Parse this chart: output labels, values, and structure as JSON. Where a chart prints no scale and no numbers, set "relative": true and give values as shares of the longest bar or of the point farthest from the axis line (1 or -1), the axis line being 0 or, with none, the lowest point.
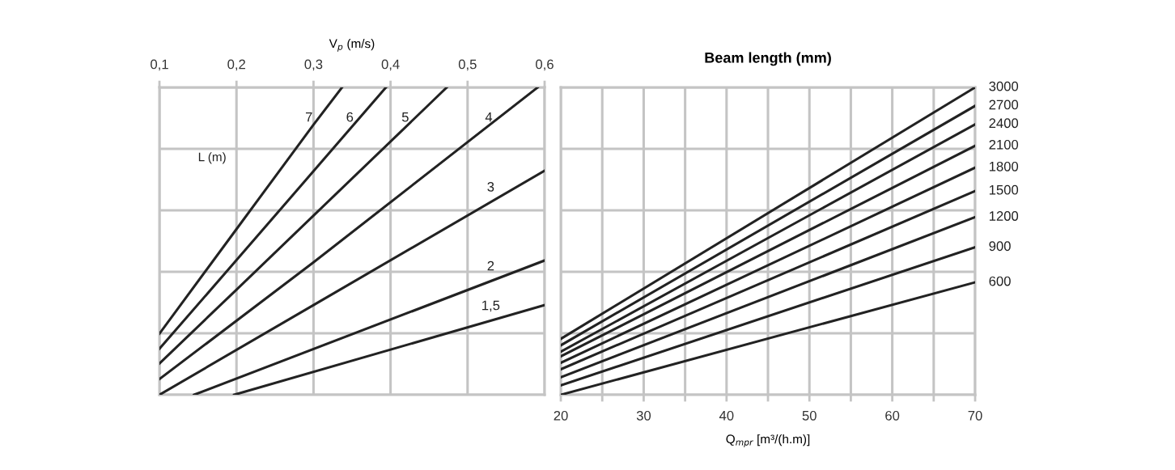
{
  "chart_data": [
    {
      "type": "line",
      "relative": true,
      "xlabel": "V$_{p}$ (m/s)",
      "xlim": [
        0.1,
        0.6
      ],
      "xticks": [
        {
          "value": 0.1,
          "label": "0,1"
        },
        {
          "value": 0.2,
          "label": "0,2"
        },
        {
          "value": 0.3,
          "label": "0,3"
        },
        {
          "value": 0.4,
          "label": "0,4"
        },
        {
          "value": 0.5,
          "label": "0,5"
        },
        {
          "value": 0.6,
          "label": "0,6"
        }
      ],
      "grid": true,
      "tick_labels": "x",
      "marker": "none",
      "line_style": "solid",
      "annotations": [
        "L (m)"
      ],
      "series": [
        {
          "name": "7",
          "color": "#222222",
          "x": [
            0.1,
            0.2,
            0.3,
            0.337
          ],
          "values": [
            0.199,
            0.539,
            0.879,
            1.0
          ]
        },
        {
          "name": "6",
          "color": "#222222",
          "x": [
            0.1,
            0.2,
            0.394
          ],
          "values": [
            0.15,
            0.438,
            1.0
          ]
        },
        {
          "name": "5",
          "color": "#222222",
          "x": [
            0.1,
            0.2,
            0.473
          ],
          "values": [
            0.102,
            0.342,
            1.0
          ]
        },
        {
          "name": "4",
          "color": "#222222",
          "x": [
            0.1,
            0.3,
            0.591
          ],
          "values": [
            0.051,
            0.431,
            1.0
          ]
        },
        {
          "name": "3",
          "color": "#222222",
          "x": [
            0.1,
            0.3,
            0.6
          ],
          "values": [
            0.0,
            0.292,
            0.729
          ]
        },
        {
          "name": "2",
          "color": "#222222",
          "x": [
            0.145,
            0.6
          ],
          "values": [
            0.0,
            0.437
          ]
        },
        {
          "name": "1,5",
          "color": "#222222",
          "x": [
            0.197,
            0.6
          ],
          "values": [
            0.0,
            0.292
          ]
        }
      ]
    },
    {
      "type": "line",
      "relative": true,
      "title": "Beam length (mm)",
      "xlabel": "Q$_{mpr}$ [m³/(h.m)]",
      "xlim": [
        20,
        70
      ],
      "xticks": [
        20,
        {
          "value": 25,
          "label": null
        },
        30,
        {
          "value": 35,
          "label": null
        },
        40,
        {
          "value": 45,
          "label": null
        },
        50,
        {
          "value": 55,
          "label": null
        },
        60,
        {
          "value": 65,
          "label": null
        },
        70
      ],
      "grid": true,
      "tick_labels": "x",
      "marker": "none",
      "line_style": "solid",
      "series": [
        {
          "name": "3000",
          "color": "#222222",
          "x": [
            20,
            70
          ],
          "values": [
            0.182,
            1.0
          ]
        },
        {
          "name": "2700",
          "color": "#222222",
          "x": [
            20,
            70
          ],
          "values": [
            0.161,
            0.94
          ]
        },
        {
          "name": "2400",
          "color": "#222222",
          "x": [
            20,
            70
          ],
          "values": [
            0.14,
            0.88
          ]
        },
        {
          "name": "2100",
          "color": "#222222",
          "x": [
            20,
            70
          ],
          "values": [
            0.125,
            0.81
          ]
        },
        {
          "name": "1800",
          "color": "#222222",
          "x": [
            20,
            70
          ],
          "values": [
            0.104,
            0.739
          ]
        },
        {
          "name": "1500",
          "color": "#222222",
          "x": [
            20,
            70
          ],
          "values": [
            0.083,
            0.663
          ]
        },
        {
          "name": "1200",
          "color": "#222222",
          "x": [
            20,
            70
          ],
          "values": [
            0.057,
            0.578
          ]
        },
        {
          "name": "900",
          "color": "#222222",
          "x": [
            20,
            70
          ],
          "values": [
            0.031,
            0.48
          ]
        },
        {
          "name": "600",
          "color": "#222222",
          "x": [
            20,
            70
          ],
          "values": [
            0.0,
            0.366
          ]
        }
      ]
    }
  ]
}
